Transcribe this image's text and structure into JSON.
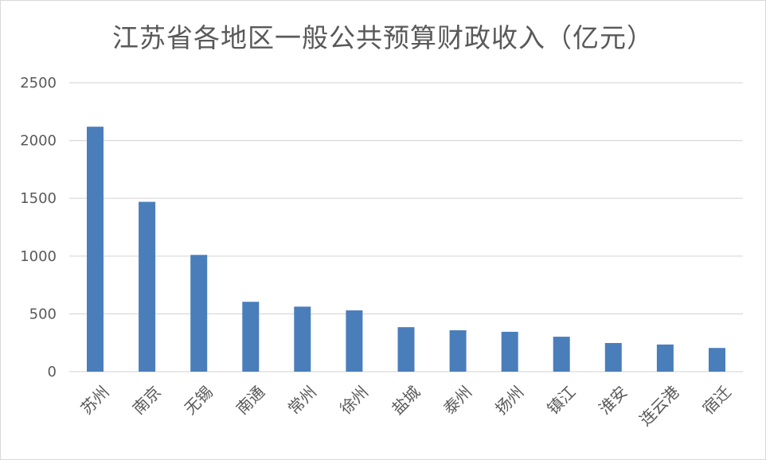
{
  "chart_data": {
    "type": "bar",
    "title": "江苏省各地区一般公共预算财政收入（亿元）",
    "categories": [
      "苏州",
      "南京",
      "无锡",
      "南通",
      "常州",
      "徐州",
      "盐城",
      "泰州",
      "扬州",
      "镇江",
      "淮安",
      "连云港",
      "宿迁"
    ],
    "values": [
      2120,
      1470,
      1010,
      605,
      563,
      530,
      385,
      358,
      345,
      302,
      248,
      235,
      205
    ],
    "ylim": [
      0,
      2500
    ],
    "yticks": [
      0,
      500,
      1000,
      1500,
      2000,
      2500
    ],
    "xlabel": "",
    "ylabel": "",
    "grid": true,
    "legend": "none",
    "bar_color": "#4a7ebb",
    "grid_color": "#d9d9d9"
  }
}
